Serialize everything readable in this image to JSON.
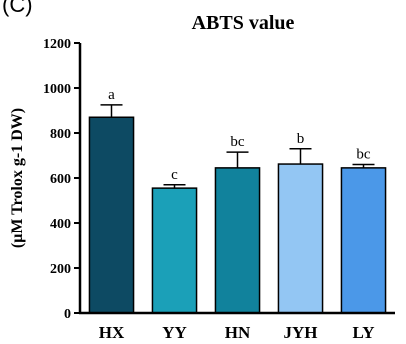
{
  "panel_label": "(C)",
  "chart_data": {
    "type": "bar",
    "title": "ABTS value",
    "xlabel": "",
    "ylabel": "(μM Trolox g-1 DW)",
    "ylim": [
      0,
      1200
    ],
    "yticks": [
      0,
      200,
      400,
      600,
      800,
      1000,
      1200
    ],
    "categories": [
      "HX",
      "YY",
      "HN",
      "JYH",
      "LY"
    ],
    "values": [
      870,
      555,
      645,
      662,
      645
    ],
    "errors": [
      55,
      15,
      70,
      68,
      15
    ],
    "significance": [
      "a",
      "c",
      "bc",
      "b",
      "bc"
    ],
    "colors": [
      "#0d4a63",
      "#1ba0b8",
      "#11829c",
      "#93c6f3",
      "#4b98e8"
    ],
    "grid": false,
    "legend": "none"
  }
}
